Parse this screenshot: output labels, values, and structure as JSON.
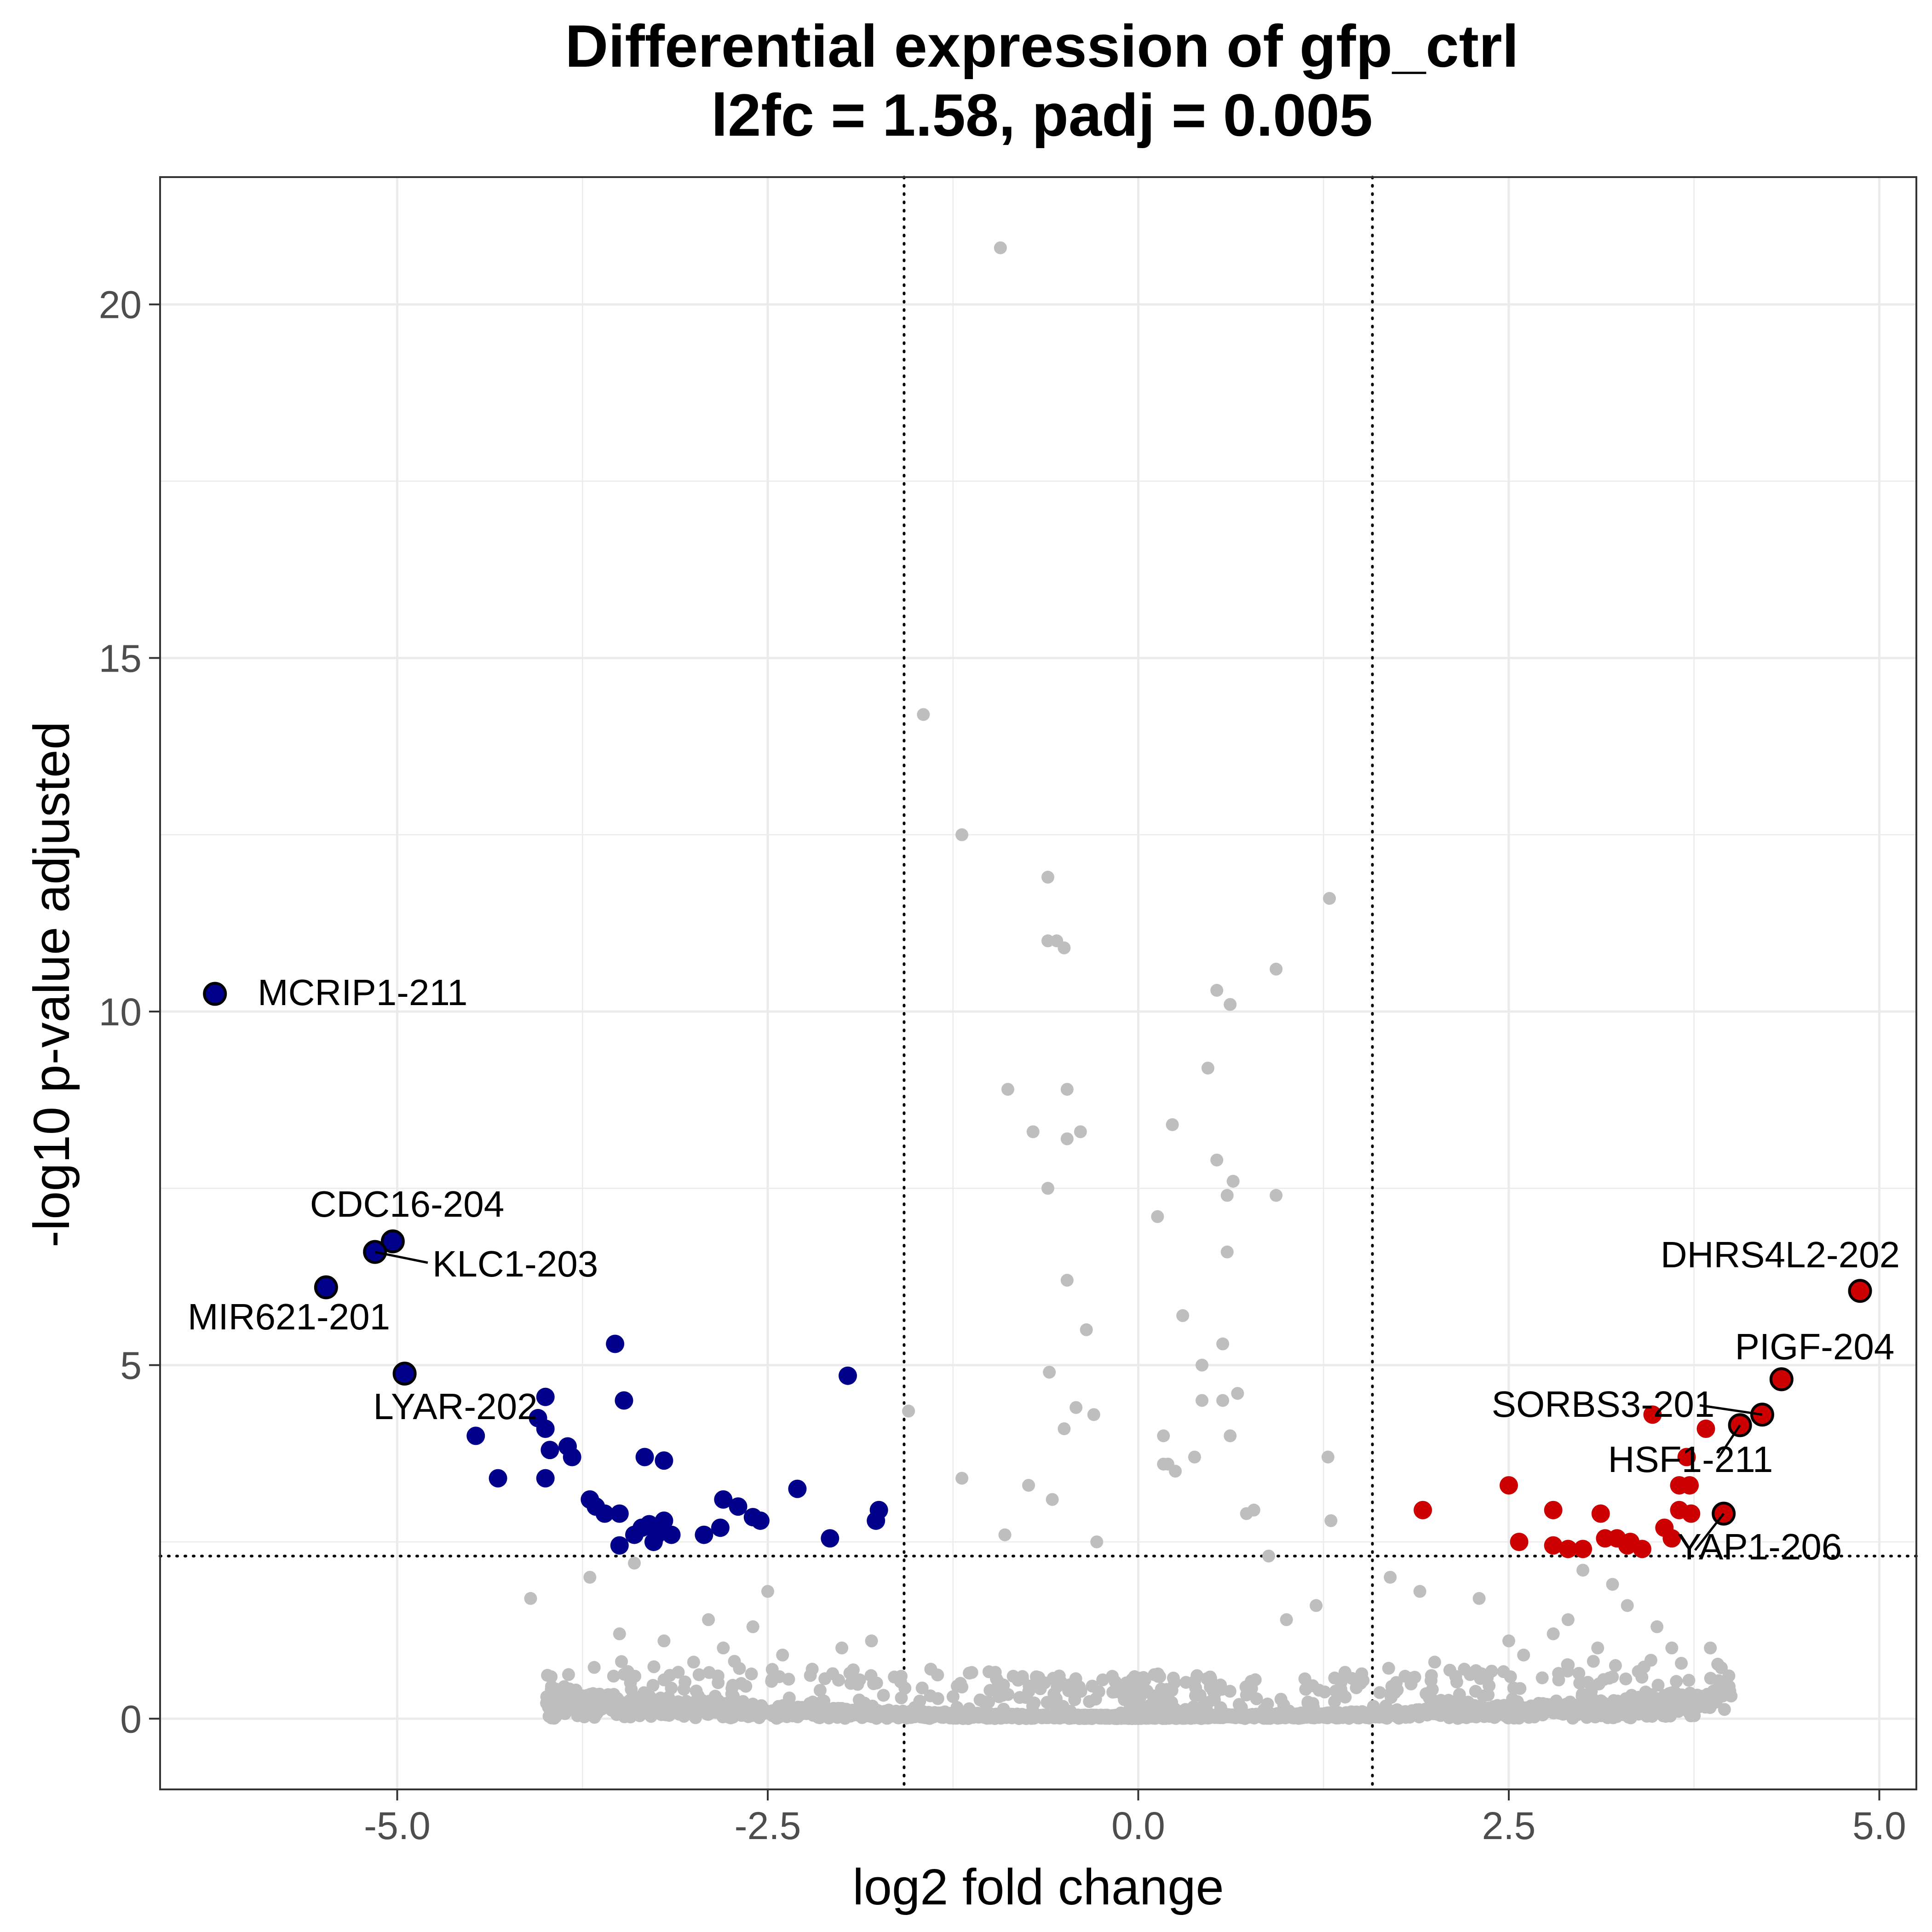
{
  "chart_data": {
    "type": "scatter",
    "title": "Differential expression of gfp_ctrl",
    "subtitle": "l2fc = 1.58, padj = 0.005",
    "xlabel": "log2 fold change",
    "ylabel": "-log10 p-value adjusted",
    "xlim": [
      -6.6,
      5.25
    ],
    "ylim": [
      -1.0,
      21.8
    ],
    "xticks": [
      -5.0,
      -2.5,
      0.0,
      2.5,
      5.0
    ],
    "xtick_labels": [
      "-5.0",
      "-2.5",
      "0.0",
      "2.5",
      "5.0"
    ],
    "yticks": [
      0,
      5,
      10,
      15,
      20
    ],
    "ytick_labels": [
      "0",
      "5",
      "10",
      "15",
      "20"
    ],
    "grid": true,
    "thresholds": {
      "l2fc": 1.58,
      "neg_log10_padj": 2.3
    },
    "colors": {
      "down": "#00008b",
      "up": "#cc0000",
      "ns": "#bebebe",
      "outline": "#000000",
      "frame": "#333333",
      "grid": "#ebebeb"
    },
    "series": [
      {
        "key": "ns",
        "x": [
          -0.93,
          -1.45,
          -1.19,
          -0.61,
          -0.61,
          -0.55,
          -0.5,
          0.93,
          1.29,
          0.53,
          0.62,
          0.47,
          -0.88,
          -0.48,
          -0.71,
          -0.48,
          -0.39,
          0.23,
          0.53,
          0.64,
          0.93,
          0.6,
          0.13,
          -0.61,
          0.6,
          -0.48,
          0.3,
          0.57,
          -0.35,
          0.43,
          0.43,
          0.67,
          -0.6,
          -1.55,
          -0.42,
          -0.3,
          -0.5,
          0.57,
          0.62,
          0.17,
          0.2,
          1.28,
          0.17,
          0.25,
          0.38,
          -1.19,
          -0.74,
          -0.58,
          0.73,
          0.78,
          0.88,
          1.3,
          -0.9,
          -0.28,
          -4.1,
          -2.9,
          -3.2,
          -3.5,
          -2.6,
          -2.8,
          -3.0,
          -2.4,
          -2.2,
          -2.0,
          -1.8,
          -1.6,
          -1.4,
          -1.2,
          -1.0,
          -0.8,
          1.5,
          1.8,
          2.0,
          2.2,
          2.5,
          2.6,
          2.8,
          2.9,
          3.1,
          3.3,
          3.5,
          3.6,
          3.0,
          3.2,
          2.3,
          1.7,
          1.9,
          1.2,
          1.0,
          -3.4,
          -3.7,
          -2.5
        ],
        "y": [
          20.8,
          14.2,
          12.5,
          11.9,
          11.0,
          11.0,
          10.9,
          10.6,
          11.6,
          10.3,
          10.1,
          9.2,
          8.9,
          8.9,
          8.3,
          8.2,
          8.3,
          8.4,
          7.9,
          7.6,
          7.4,
          7.4,
          7.1,
          7.5,
          6.6,
          6.2,
          5.7,
          5.3,
          5.5,
          5.0,
          4.5,
          4.6,
          4.9,
          4.35,
          4.4,
          4.3,
          4.1,
          4.5,
          4.0,
          4.0,
          3.6,
          3.7,
          3.6,
          3.5,
          3.7,
          3.4,
          3.3,
          3.1,
          2.9,
          2.95,
          2.3,
          2.8,
          2.6,
          2.5,
          1.7,
          1.4,
          1.1,
          1.2,
          1.3,
          1.0,
          0.8,
          0.9,
          0.7,
          1.0,
          1.1,
          0.6,
          0.7,
          0.5,
          0.4,
          0.3,
          0.5,
          0.6,
          0.8,
          0.7,
          1.1,
          0.9,
          1.2,
          1.4,
          1.0,
          1.6,
          1.3,
          1.0,
          2.1,
          1.9,
          1.7,
          2.0,
          1.8,
          1.6,
          1.4,
          2.2,
          2.0,
          1.8
        ]
      },
      {
        "key": "down",
        "x": [
          -3.53,
          -1.96,
          -4.0,
          -3.47,
          -4.05,
          -4.0,
          -4.47,
          -3.85,
          -4.32,
          -4.0,
          -3.82,
          -3.97,
          -3.2,
          -3.33,
          -3.7,
          -2.8,
          -2.6,
          -2.3,
          -1.75,
          -3.66,
          -3.6,
          -3.5,
          -3.35,
          -3.3,
          -3.2,
          -3.25,
          -3.15,
          -2.7,
          -2.55,
          -2.82,
          -2.93,
          -2.08,
          -1.77,
          -3.4,
          -3.27,
          -3.5
        ],
        "y": [
          5.3,
          4.85,
          4.55,
          4.5,
          4.25,
          4.1,
          4.0,
          3.85,
          3.4,
          3.4,
          3.7,
          3.8,
          3.65,
          3.7,
          3.1,
          3.1,
          2.85,
          3.25,
          2.95,
          3.0,
          2.9,
          2.9,
          2.7,
          2.75,
          2.8,
          2.6,
          2.6,
          3.0,
          2.8,
          2.7,
          2.6,
          2.55,
          2.8,
          2.6,
          2.5,
          2.45
        ]
      },
      {
        "key": "up",
        "x": [
          2.5,
          3.47,
          3.83,
          3.7,
          3.65,
          3.72,
          1.92,
          2.8,
          3.12,
          3.55,
          3.65,
          3.73,
          2.57,
          2.8,
          2.9,
          3.0,
          3.15,
          3.23,
          3.3,
          3.4,
          3.32,
          3.6
        ],
        "y": [
          3.3,
          4.3,
          4.1,
          3.7,
          3.3,
          3.3,
          2.95,
          2.95,
          2.9,
          2.7,
          2.95,
          2.9,
          2.5,
          2.45,
          2.4,
          2.4,
          2.55,
          2.55,
          2.45,
          2.4,
          2.5,
          2.55
        ]
      }
    ],
    "labeled_genes": [
      {
        "name": "MCRIP1-211",
        "x": -6.23,
        "y": 10.25,
        "group": "down"
      },
      {
        "name": "CDC16-204",
        "x": -5.03,
        "y": 6.75,
        "group": "down"
      },
      {
        "name": "KLC1-203",
        "x": -5.15,
        "y": 6.6,
        "group": "down"
      },
      {
        "name": "MIR621-201",
        "x": -5.48,
        "y": 6.1,
        "group": "down"
      },
      {
        "name": "LYAR-202",
        "x": -4.95,
        "y": 4.88,
        "group": "down"
      },
      {
        "name": "DHRS4L2-202",
        "x": 4.87,
        "y": 6.05,
        "group": "up"
      },
      {
        "name": "PIGF-204",
        "x": 4.34,
        "y": 4.8,
        "group": "up"
      },
      {
        "name": "SORBS3-201",
        "x": 4.21,
        "y": 4.3,
        "group": "up"
      },
      {
        "name": "HSF1-211",
        "x": 4.06,
        "y": 4.15,
        "group": "up"
      },
      {
        "name": "YAP1-206",
        "x": 3.95,
        "y": 2.9,
        "group": "up"
      }
    ]
  }
}
